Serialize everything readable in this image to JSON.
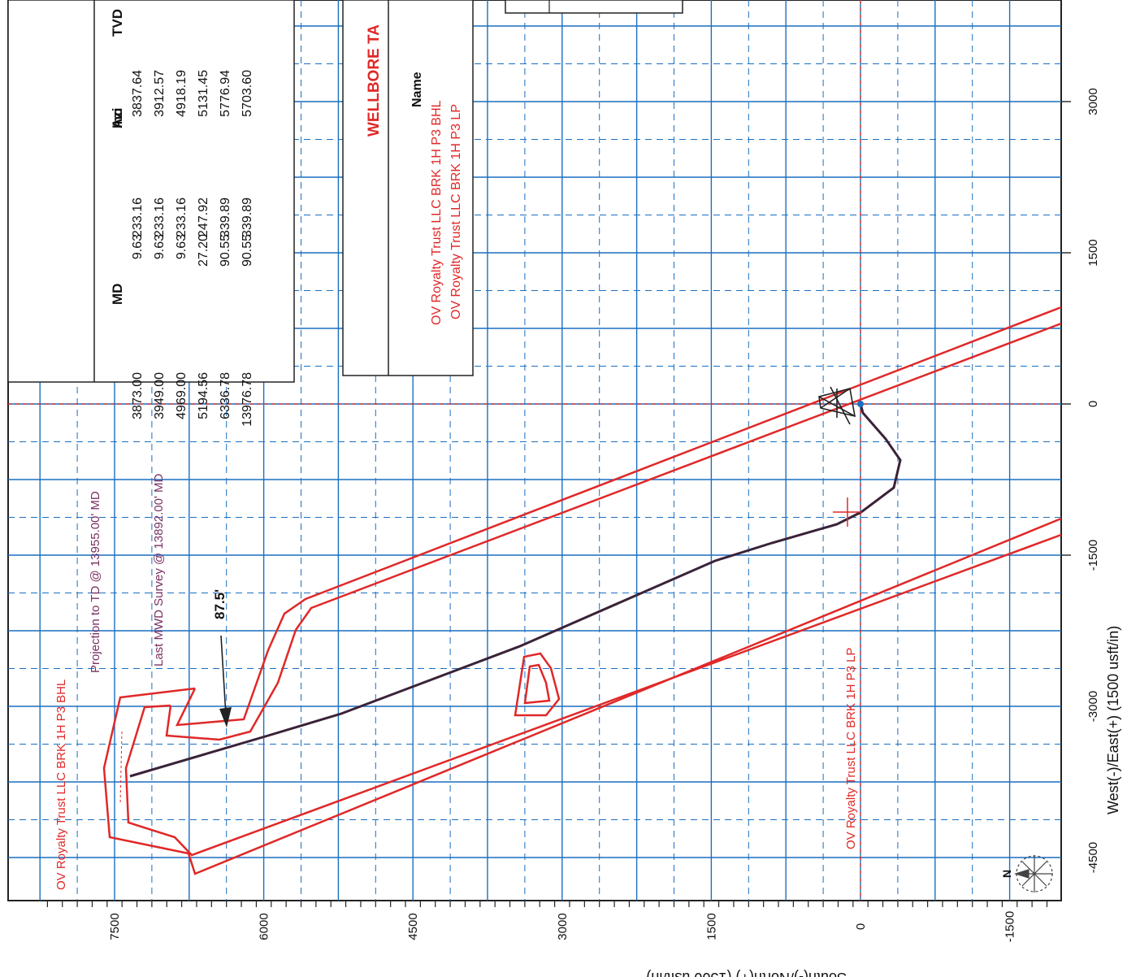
{
  "chart_data": {
    "type": "scatter",
    "x_axis": {
      "label": "West(-)/East(+) (1500 usft/in)",
      "ticks": [
        -1500,
        0,
        1500,
        3000
      ],
      "tick_labels": [
        "-1500",
        "0",
        "1500",
        "3000"
      ]
    },
    "y_axis": {
      "label": "South(-)/North(+) (1500 usft/in)",
      "ticks": [
        -4500,
        -3000,
        -1500,
        0,
        1500,
        3000
      ],
      "tick_labels": [
        "-4500",
        "-3000",
        "-1500",
        "0",
        "1500",
        "3000"
      ]
    },
    "y_ticks_on_bottom": {
      "ticks": [
        7500,
        6000,
        4500,
        3000,
        1500,
        0,
        -1500
      ],
      "tick_labels": [
        "7500",
        "6000",
        "4500",
        "3000",
        "1500",
        "0",
        "-1500"
      ]
    },
    "annotations": {
      "bhl_target": "OV Royalty Trust LLC BRK 1H P3 BHL",
      "lp_target": "OV Royalty Trust LLC BRK 1H P3 LP",
      "projection": "Projection to TD @ 13955.00' MD",
      "last_survey": "Last MWD Survey @ 13892.00' MD",
      "distance": "87.5'"
    },
    "survey_table": {
      "headers": [
        "MD",
        "Inc",
        "Azi",
        "TVD"
      ],
      "rows": [
        [
          "3873.00",
          "9.63",
          "233.16",
          "3837.64"
        ],
        [
          "3949.00",
          "9.63",
          "233.16",
          "3912.57"
        ],
        [
          "4969.00",
          "9.63",
          "233.16",
          "4918.19"
        ],
        [
          "5194.56",
          "27.20",
          "247.92",
          "5131.45"
        ],
        [
          "6336.78",
          "90.55",
          "339.89",
          "5776.94"
        ],
        [
          "13976.78",
          "90.55",
          "339.89",
          "5703.60"
        ]
      ]
    },
    "wellbore_targets": {
      "title": "WELLBORE TA",
      "name_header": "Name",
      "names": [
        "OV Royalty Trust LLC BRK 1H P3 BHL",
        "OV Royalty Trust LLC BRK 1H P3 LP"
      ]
    },
    "compass_label": "N",
    "colors": {
      "grid": "#1a6fc0",
      "target": "#e02828",
      "wellpath": "#3a2238",
      "text_red": "#e02828"
    }
  }
}
